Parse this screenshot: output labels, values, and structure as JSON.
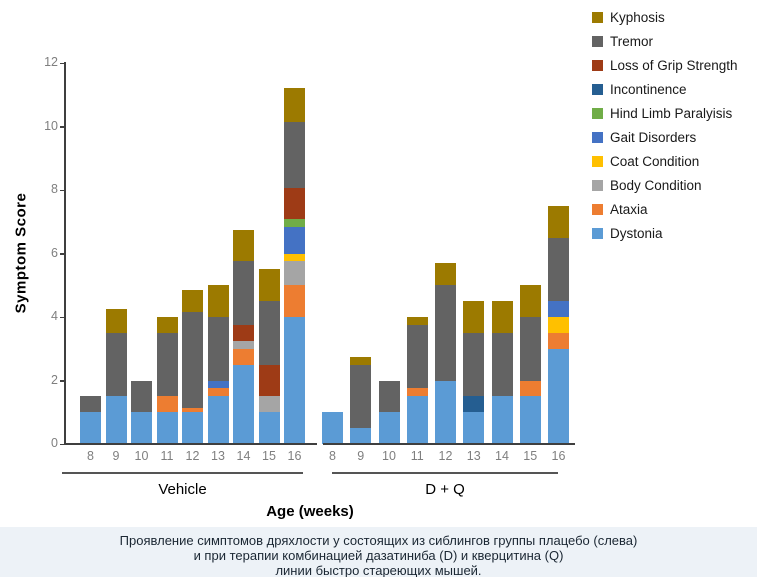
{
  "chart_data": {
    "type": "bar",
    "stacked": true,
    "title": "",
    "ylabel": "Symptom Score",
    "xlabel": "Age (weeks)",
    "ylim": [
      0,
      12
    ],
    "yticks": [
      0,
      2,
      4,
      6,
      8,
      10,
      12
    ],
    "grid": false,
    "legend_position": "top-right",
    "legend_top_to_bottom": [
      "Kyphosis",
      "Tremor",
      "Loss of Grip Strength",
      "Incontinence",
      "Hind Limb Paralyisis",
      "Gait Disorders",
      "Coat Condition",
      "Body Condition",
      "Ataxia",
      "Dystonia"
    ],
    "categories_bottom_to_top": [
      {
        "label": "Dystonia",
        "color": "#5B9BD5"
      },
      {
        "label": "Ataxia",
        "color": "#ED7D31"
      },
      {
        "label": "Body Condition",
        "color": "#A5A5A5"
      },
      {
        "label": "Coat Condition",
        "color": "#FFC000"
      },
      {
        "label": "Gait Disorders",
        "color": "#4472C4"
      },
      {
        "label": "Hind Limb Paralyisis",
        "color": "#70AD47"
      },
      {
        "label": "Incontinence",
        "color": "#255E91"
      },
      {
        "label": "Loss of Grip Strength",
        "color": "#9E3B16"
      },
      {
        "label": "Tremor",
        "color": "#636363"
      },
      {
        "label": "Kyphosis",
        "color": "#9C7A00"
      }
    ],
    "x_weeks": [
      "8",
      "9",
      "10",
      "11",
      "12",
      "13",
      "14",
      "15",
      "16"
    ],
    "groups": [
      {
        "label": "Vehicle",
        "bars": [
          {
            "week": "8",
            "total": 1.5,
            "segments": {
              "Dystonia": 1.0,
              "Tremor": 0.5
            }
          },
          {
            "week": "9",
            "total": 4.25,
            "segments": {
              "Dystonia": 1.5,
              "Tremor": 2.0,
              "Kyphosis": 0.75
            }
          },
          {
            "week": "10",
            "total": 2.0,
            "segments": {
              "Dystonia": 1.0,
              "Tremor": 1.0
            }
          },
          {
            "week": "11",
            "total": 4.0,
            "segments": {
              "Dystonia": 1.0,
              "Ataxia": 0.5,
              "Tremor": 2.0,
              "Kyphosis": 0.5
            }
          },
          {
            "week": "12",
            "total": 4.85,
            "segments": {
              "Dystonia": 1.0,
              "Ataxia": 0.15,
              "Tremor": 3.0,
              "Kyphosis": 0.7
            }
          },
          {
            "week": "13",
            "total": 5.0,
            "segments": {
              "Dystonia": 1.5,
              "Ataxia": 0.25,
              "Gait Disorders": 0.25,
              "Tremor": 2.0,
              "Kyphosis": 1.0
            }
          },
          {
            "week": "14",
            "total": 6.75,
            "segments": {
              "Dystonia": 2.5,
              "Ataxia": 0.5,
              "Body Condition": 0.25,
              "Loss of Grip Strength": 0.5,
              "Tremor": 2.0,
              "Kyphosis": 1.0
            }
          },
          {
            "week": "15",
            "total": 5.5,
            "segments": {
              "Dystonia": 1.0,
              "Body Condition": 0.5,
              "Loss of Grip Strength": 1.0,
              "Tremor": 2.0,
              "Kyphosis": 1.0
            }
          },
          {
            "week": "16",
            "total": 11.2,
            "segments": {
              "Dystonia": 4.0,
              "Ataxia": 1.0,
              "Body Condition": 0.75,
              "Coat Condition": 0.25,
              "Gait Disorders": 0.85,
              "Hind Limb Paralyisis": 0.25,
              "Loss of Grip Strength": 0.95,
              "Tremor": 2.1,
              "Kyphosis": 1.05
            }
          }
        ]
      },
      {
        "label": "D + Q",
        "bars": [
          {
            "week": "8",
            "total": 1.0,
            "segments": {
              "Dystonia": 1.0
            }
          },
          {
            "week": "9",
            "total": 2.75,
            "segments": {
              "Dystonia": 0.5,
              "Tremor": 2.0,
              "Kyphosis": 0.25
            }
          },
          {
            "week": "10",
            "total": 2.0,
            "segments": {
              "Dystonia": 1.0,
              "Tremor": 1.0
            }
          },
          {
            "week": "11",
            "total": 4.0,
            "segments": {
              "Dystonia": 1.5,
              "Ataxia": 0.25,
              "Tremor": 2.0,
              "Kyphosis": 0.25
            }
          },
          {
            "week": "12",
            "total": 5.7,
            "segments": {
              "Dystonia": 2.0,
              "Tremor": 3.0,
              "Kyphosis": 0.7
            }
          },
          {
            "week": "13",
            "total": 4.5,
            "segments": {
              "Dystonia": 1.0,
              "Incontinence": 0.5,
              "Tremor": 2.0,
              "Kyphosis": 1.0
            }
          },
          {
            "week": "14",
            "total": 4.5,
            "segments": {
              "Dystonia": 1.5,
              "Tremor": 2.0,
              "Kyphosis": 1.0
            }
          },
          {
            "week": "15",
            "total": 5.0,
            "segments": {
              "Dystonia": 1.5,
              "Ataxia": 0.5,
              "Tremor": 2.0,
              "Kyphosis": 1.0
            }
          },
          {
            "week": "16",
            "total": 7.5,
            "segments": {
              "Dystonia": 3.0,
              "Ataxia": 0.5,
              "Coat Condition": 0.5,
              "Gait Disorders": 0.5,
              "Tremor": 2.0,
              "Kyphosis": 1.0
            }
          }
        ]
      }
    ]
  },
  "caption": {
    "background": "#edf2f7",
    "lines": [
      "Проявление симптомов дряхлости у состоящих из сиблингов группы плацебо (слева)",
      "и при терапии комбинацией дазатиниба (D) и кверцитина (Q)",
      "линии быстро стареющих мышей."
    ]
  }
}
